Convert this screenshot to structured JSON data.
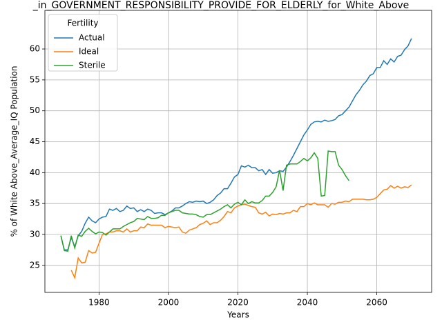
{
  "chart_data": {
    "type": "line",
    "title": "_in_GOVERNMENT_RESPONSIBILITY_PROVIDE_FOR_ELDERLY_for_White_Above",
    "xlabel": "Years",
    "ylabel": "% of White Above_Average_IQ Population",
    "legend_title": "Fertility",
    "legend": "upper left",
    "grid": true,
    "xlim": [
      1964.4,
      2075.8
    ],
    "xticks": [
      1980,
      2000,
      2020,
      2040,
      2060
    ],
    "ylim": [
      20.63,
      66.25
    ],
    "yticks": [
      25,
      30,
      35,
      40,
      45,
      50,
      55,
      60
    ],
    "x": [
      1969,
      1970,
      1971,
      1972,
      1973,
      1974,
      1975,
      1976,
      1977,
      1978,
      1979,
      1980,
      1981,
      1982,
      1983,
      1984,
      1985,
      1986,
      1987,
      1988,
      1989,
      1990,
      1991,
      1992,
      1993,
      1994,
      1995,
      1996,
      1997,
      1998,
      1999,
      2000,
      2001,
      2002,
      2003,
      2004,
      2005,
      2006,
      2007,
      2008,
      2009,
      2010,
      2011,
      2012,
      2013,
      2014,
      2015,
      2016,
      2017,
      2018,
      2019,
      2020,
      2021,
      2022,
      2023,
      2024,
      2025,
      2026,
      2027,
      2028,
      2029,
      2030,
      2031,
      2032,
      2033,
      2034,
      2035,
      2036,
      2037,
      2038,
      2039,
      2040,
      2041,
      2042,
      2043,
      2044,
      2045,
      2046,
      2047,
      2048,
      2049,
      2050,
      2051,
      2052,
      2053,
      2054,
      2055,
      2056,
      2057,
      2058,
      2059,
      2060,
      2061,
      2062,
      2063,
      2064,
      2065,
      2066,
      2067,
      2068,
      2069,
      2070
    ],
    "series": [
      {
        "name": "Actual",
        "color": "#1f77b4",
        "values": [
          29.8,
          27.5,
          27.5,
          29.5,
          28.0,
          29.8,
          30.5,
          31.8,
          32.8,
          32.2,
          31.9,
          32.5,
          32.8,
          32.9,
          34.1,
          33.9,
          34.2,
          33.7,
          33.9,
          34.6,
          34.2,
          34.3,
          33.7,
          34.0,
          33.7,
          34.1,
          33.9,
          33.4,
          33.5,
          33.5,
          33.2,
          33.5,
          33.8,
          34.3,
          34.3,
          34.6,
          35.0,
          35.3,
          35.2,
          35.4,
          35.3,
          35.4,
          35.0,
          35.2,
          35.6,
          36.3,
          36.7,
          37.4,
          37.4,
          38.3,
          39.3,
          39.7,
          41.1,
          40.9,
          41.2,
          40.8,
          40.8,
          40.3,
          40.5,
          39.7,
          40.5,
          39.9,
          40.0,
          40.3,
          40.2,
          40.9,
          41.8,
          42.8,
          43.9,
          45.0,
          46.1,
          46.9,
          47.8,
          48.2,
          48.3,
          48.2,
          48.5,
          48.3,
          48.4,
          48.6,
          49.2,
          49.4,
          50.0,
          50.6,
          51.6,
          52.6,
          53.3,
          54.2,
          54.8,
          55.7,
          56.0,
          57.0,
          57.0,
          58.1,
          57.5,
          58.4,
          57.9,
          58.8,
          59.0,
          59.9,
          60.5,
          61.7
        ]
      },
      {
        "name": "Ideal",
        "color": "#ff7f0e",
        "values": [
          null,
          null,
          null,
          24.2,
          23.0,
          26.2,
          25.4,
          25.5,
          27.4,
          27.0,
          27.1,
          28.6,
          30.0,
          30.1,
          30.4,
          30.4,
          30.6,
          30.6,
          30.4,
          30.9,
          30.4,
          30.6,
          30.6,
          31.2,
          31.1,
          31.7,
          31.5,
          31.5,
          31.5,
          31.5,
          31.1,
          31.3,
          31.2,
          31.1,
          31.2,
          30.4,
          30.2,
          30.7,
          30.9,
          31.1,
          31.6,
          31.8,
          32.2,
          31.6,
          31.9,
          31.9,
          32.3,
          32.9,
          33.7,
          33.5,
          34.3,
          34.6,
          34.8,
          34.9,
          34.7,
          34.5,
          34.4,
          33.5,
          33.3,
          33.6,
          33.0,
          33.3,
          33.2,
          33.4,
          33.3,
          33.5,
          33.5,
          33.9,
          33.7,
          34.5,
          34.5,
          35.0,
          34.8,
          35.1,
          34.8,
          34.8,
          34.8,
          34.4,
          35.0,
          34.9,
          35.2,
          35.2,
          35.4,
          35.3,
          35.7,
          35.7,
          35.7,
          35.7,
          35.6,
          35.6,
          35.7,
          36.0,
          36.6,
          37.2,
          37.3,
          37.9,
          37.5,
          37.8,
          37.5,
          37.7,
          37.6,
          38.0
        ]
      },
      {
        "name": "Sterile",
        "color": "#2ca02c",
        "values": [
          29.8,
          27.4,
          27.3,
          29.8,
          27.8,
          29.9,
          29.7,
          30.5,
          31.0,
          30.5,
          30.1,
          30.4,
          30.3,
          29.9,
          30.4,
          30.9,
          30.9,
          30.9,
          31.3,
          31.6,
          31.9,
          32.1,
          32.6,
          32.5,
          32.4,
          32.9,
          32.6,
          32.6,
          32.7,
          33.1,
          33.1,
          33.5,
          33.7,
          33.9,
          33.9,
          33.5,
          33.4,
          33.3,
          33.3,
          33.2,
          32.9,
          32.8,
          33.2,
          33.2,
          33.5,
          33.8,
          34.1,
          34.5,
          34.8,
          34.3,
          34.9,
          35.2,
          34.8,
          35.6,
          35.0,
          35.3,
          35.1,
          35.1,
          35.5,
          36.2,
          36.2,
          36.8,
          37.7,
          40.4,
          37.1,
          41.2,
          41.4,
          41.4,
          41.4,
          41.8,
          42.3,
          41.9,
          42.4,
          43.2,
          42.3,
          36.2,
          36.3,
          43.5,
          43.4,
          43.4,
          41.2,
          40.5,
          39.5,
          38.7,
          null,
          null,
          null,
          null,
          null,
          null,
          null,
          null,
          null,
          null,
          null,
          null,
          null,
          null,
          null,
          null,
          null,
          null
        ]
      }
    ]
  }
}
